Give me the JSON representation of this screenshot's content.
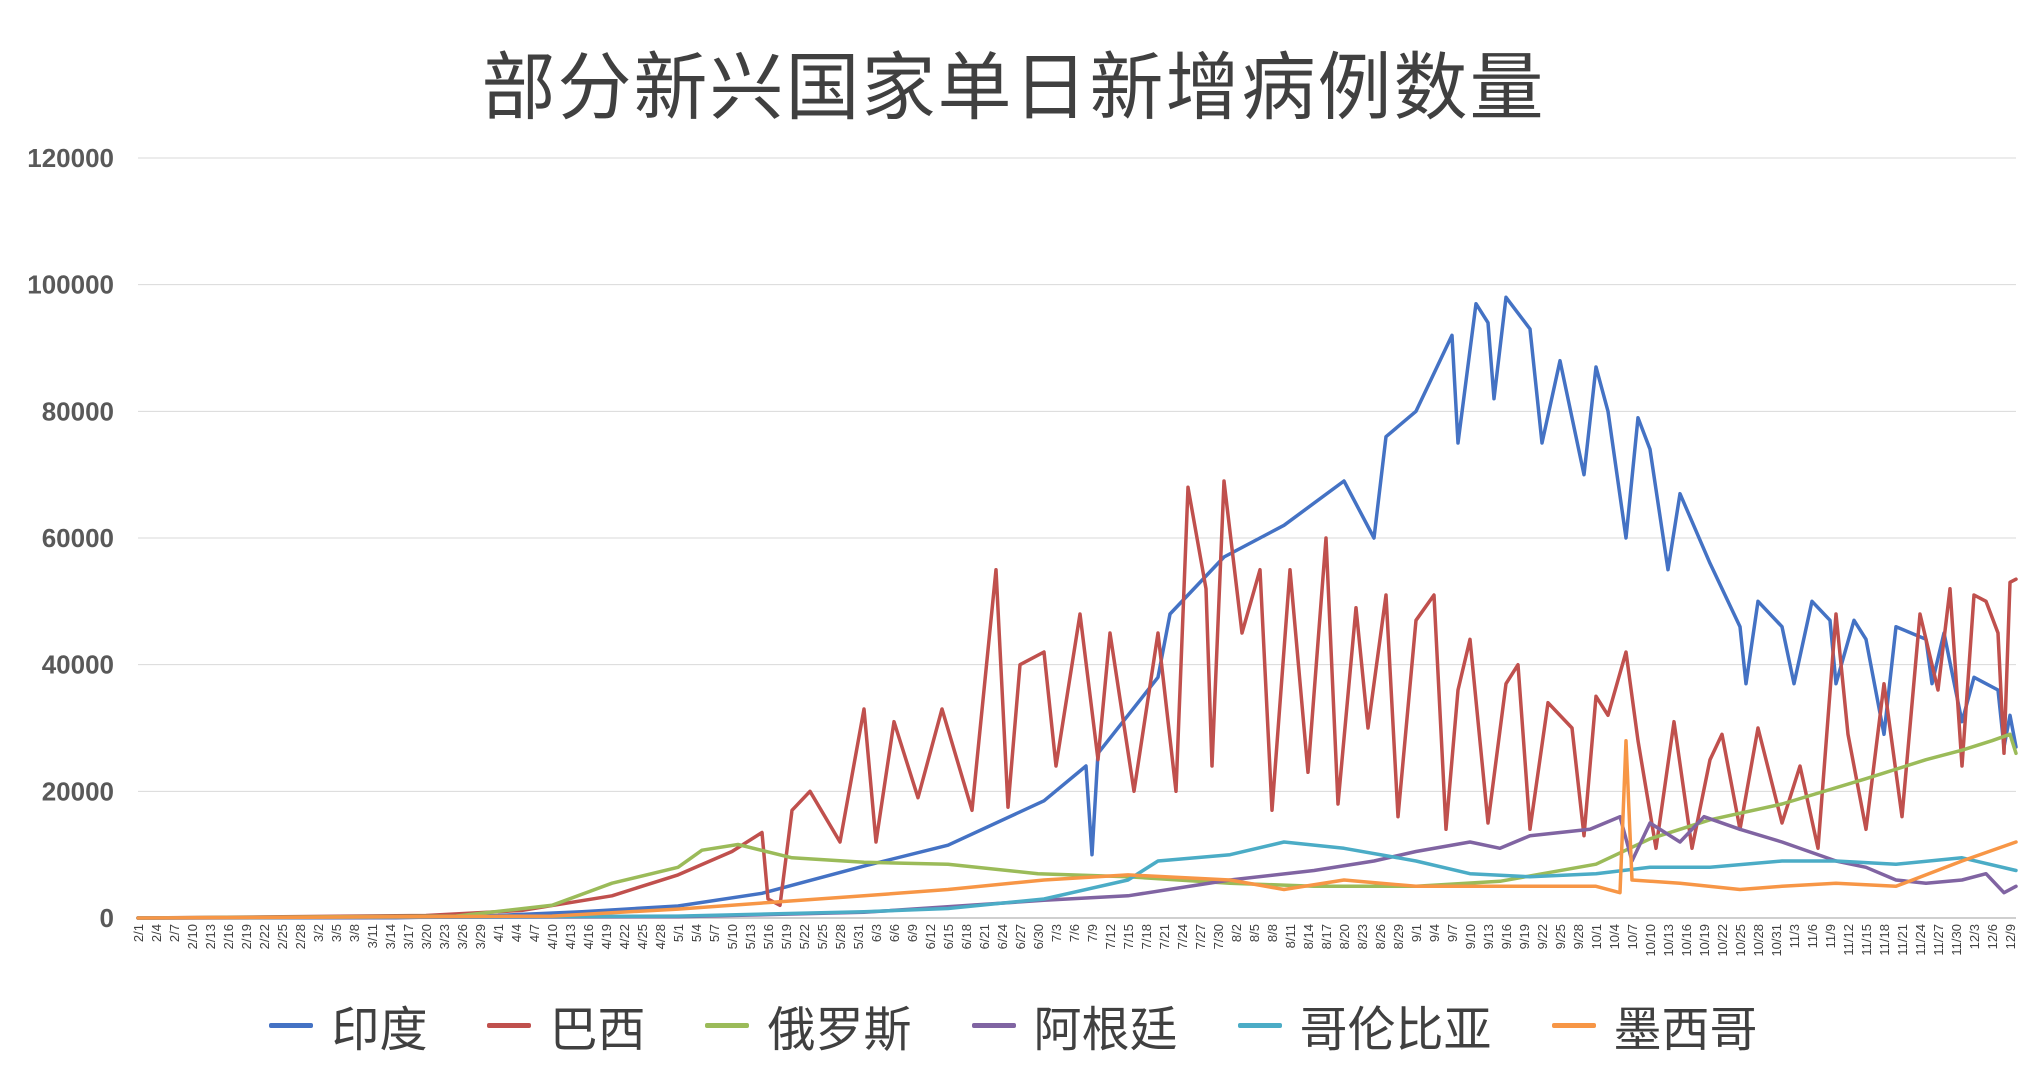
{
  "chart_data": {
    "type": "line",
    "title": "部分新兴国家单日新增病例数量",
    "xlabel": "",
    "ylabel": "",
    "ylim": [
      0,
      120000
    ],
    "yticks": [
      "0",
      "20000",
      "40000",
      "60000",
      "80000",
      "100000",
      "120000"
    ],
    "grid": true,
    "legend_position": "bottom",
    "x_start": "2/1",
    "x_end": "12/10",
    "x_tick_labels": [
      "2/1",
      "2/4",
      "2/7",
      "2/10",
      "2/13",
      "2/16",
      "2/19",
      "2/22",
      "2/25",
      "2/28",
      "3/2",
      "3/5",
      "3/8",
      "3/11",
      "3/14",
      "3/17",
      "3/20",
      "3/23",
      "3/26",
      "3/29",
      "4/1",
      "4/4",
      "4/7",
      "4/10",
      "4/13",
      "4/16",
      "4/19",
      "4/22",
      "4/25",
      "4/28",
      "5/1",
      "5/4",
      "5/7",
      "5/10",
      "5/13",
      "5/16",
      "5/19",
      "5/22",
      "5/25",
      "5/28",
      "5/31",
      "6/3",
      "6/6",
      "6/9",
      "6/12",
      "6/15",
      "6/18",
      "6/21",
      "6/24",
      "6/27",
      "6/30",
      "7/3",
      "7/6",
      "7/9",
      "7/12",
      "7/15",
      "7/18",
      "7/21",
      "7/24",
      "7/27",
      "7/30",
      "8/2",
      "8/5",
      "8/8",
      "8/11",
      "8/14",
      "8/17",
      "8/20",
      "8/23",
      "8/26",
      "8/29",
      "9/1",
      "9/4",
      "9/7",
      "9/10",
      "9/13",
      "9/16",
      "9/19",
      "9/22",
      "9/25",
      "9/28",
      "10/1",
      "10/4",
      "10/7",
      "10/10",
      "10/13",
      "10/16",
      "10/19",
      "10/22",
      "10/25",
      "10/28",
      "10/31",
      "11/3",
      "11/6",
      "11/9",
      "11/12",
      "11/15",
      "11/18",
      "11/21",
      "11/24",
      "11/27",
      "11/30",
      "12/3",
      "12/6",
      "12/9"
    ],
    "series": [
      {
        "name": "印度",
        "color": "#4472C4",
        "points": [
          [
            "2/1",
            0
          ],
          [
            "3/15",
            50
          ],
          [
            "4/1",
            400
          ],
          [
            "4/15",
            1000
          ],
          [
            "5/1",
            1900
          ],
          [
            "5/15",
            3900
          ],
          [
            "6/1",
            8200
          ],
          [
            "6/15",
            11500
          ],
          [
            "7/1",
            18500
          ],
          [
            "7/8",
            24000
          ],
          [
            "7/9",
            10000
          ],
          [
            "7/10",
            26000
          ],
          [
            "7/20",
            38000
          ],
          [
            "7/22",
            48000
          ],
          [
            "7/31",
            57000
          ],
          [
            "8/10",
            62000
          ],
          [
            "8/20",
            69000
          ],
          [
            "8/25",
            60000
          ],
          [
            "8/27",
            76000
          ],
          [
            "9/1",
            80000
          ],
          [
            "9/7",
            92000
          ],
          [
            "9/8",
            75000
          ],
          [
            "9/11",
            97000
          ],
          [
            "9/13",
            94000
          ],
          [
            "9/14",
            82000
          ],
          [
            "9/16",
            98000
          ],
          [
            "9/20",
            93000
          ],
          [
            "9/22",
            75000
          ],
          [
            "9/25",
            88000
          ],
          [
            "9/29",
            70000
          ],
          [
            "10/1",
            87000
          ],
          [
            "10/3",
            80000
          ],
          [
            "10/6",
            60000
          ],
          [
            "10/8",
            79000
          ],
          [
            "10/10",
            74000
          ],
          [
            "10/13",
            55000
          ],
          [
            "10/15",
            67000
          ],
          [
            "10/20",
            56000
          ],
          [
            "10/25",
            46000
          ],
          [
            "10/26",
            37000
          ],
          [
            "10/28",
            50000
          ],
          [
            "11/1",
            46000
          ],
          [
            "11/3",
            37000
          ],
          [
            "11/6",
            50000
          ],
          [
            "11/9",
            47000
          ],
          [
            "11/10",
            37000
          ],
          [
            "11/13",
            47000
          ],
          [
            "11/15",
            44000
          ],
          [
            "11/18",
            29000
          ],
          [
            "11/20",
            46000
          ],
          [
            "11/25",
            44000
          ],
          [
            "11/26",
            37000
          ],
          [
            "11/28",
            45000
          ],
          [
            "12/1",
            31000
          ],
          [
            "12/3",
            38000
          ],
          [
            "12/7",
            36000
          ],
          [
            "12/8",
            27000
          ],
          [
            "12/9",
            32000
          ],
          [
            "12/10",
            27000
          ]
        ]
      },
      {
        "name": "巴西",
        "color": "#C0504D",
        "points": [
          [
            "2/1",
            0
          ],
          [
            "3/20",
            400
          ],
          [
            "4/5",
            1200
          ],
          [
            "4/20",
            3500
          ],
          [
            "5/1",
            6800
          ],
          [
            "5/10",
            10500
          ],
          [
            "5/15",
            13500
          ],
          [
            "5/16",
            3000
          ],
          [
            "5/18",
            2000
          ],
          [
            "5/20",
            17000
          ],
          [
            "5/23",
            20000
          ],
          [
            "5/28",
            12000
          ],
          [
            "6/1",
            33000
          ],
          [
            "6/3",
            12000
          ],
          [
            "6/6",
            31000
          ],
          [
            "6/10",
            19000
          ],
          [
            "6/14",
            33000
          ],
          [
            "6/19",
            17000
          ],
          [
            "6/23",
            55000
          ],
          [
            "6/25",
            17500
          ],
          [
            "6/27",
            40000
          ],
          [
            "7/1",
            42000
          ],
          [
            "7/3",
            24000
          ],
          [
            "7/7",
            48000
          ],
          [
            "7/10",
            25000
          ],
          [
            "7/12",
            45000
          ],
          [
            "7/16",
            20000
          ],
          [
            "7/20",
            45000
          ],
          [
            "7/23",
            20000
          ],
          [
            "7/25",
            68000
          ],
          [
            "7/28",
            52000
          ],
          [
            "7/29",
            24000
          ],
          [
            "7/31",
            69000
          ],
          [
            "8/3",
            45000
          ],
          [
            "8/6",
            55000
          ],
          [
            "8/8",
            17000
          ],
          [
            "8/11",
            55000
          ],
          [
            "8/14",
            23000
          ],
          [
            "8/17",
            60000
          ],
          [
            "8/19",
            18000
          ],
          [
            "8/22",
            49000
          ],
          [
            "8/24",
            30000
          ],
          [
            "8/27",
            51000
          ],
          [
            "8/29",
            16000
          ],
          [
            "9/1",
            47000
          ],
          [
            "9/4",
            51000
          ],
          [
            "9/6",
            14000
          ],
          [
            "9/8",
            36000
          ],
          [
            "9/10",
            44000
          ],
          [
            "9/13",
            15000
          ],
          [
            "9/16",
            37000
          ],
          [
            "9/18",
            40000
          ],
          [
            "9/20",
            14000
          ],
          [
            "9/23",
            34000
          ],
          [
            "9/27",
            30000
          ],
          [
            "9/29",
            13000
          ],
          [
            "10/1",
            35000
          ],
          [
            "10/3",
            32000
          ],
          [
            "10/6",
            42000
          ],
          [
            "10/8",
            28000
          ],
          [
            "10/11",
            11000
          ],
          [
            "10/14",
            31000
          ],
          [
            "10/17",
            11000
          ],
          [
            "10/20",
            25000
          ],
          [
            "10/22",
            29000
          ],
          [
            "10/25",
            14000
          ],
          [
            "10/28",
            30000
          ],
          [
            "11/1",
            15000
          ],
          [
            "11/4",
            24000
          ],
          [
            "11/7",
            11000
          ],
          [
            "11/10",
            48000
          ],
          [
            "11/12",
            29000
          ],
          [
            "11/15",
            14000
          ],
          [
            "11/18",
            37000
          ],
          [
            "11/21",
            16000
          ],
          [
            "11/24",
            48000
          ],
          [
            "11/27",
            36000
          ],
          [
            "11/29",
            52000
          ],
          [
            "12/1",
            24000
          ],
          [
            "12/3",
            51000
          ],
          [
            "12/5",
            50000
          ],
          [
            "12/7",
            45000
          ],
          [
            "12/8",
            26000
          ],
          [
            "12/9",
            53000
          ],
          [
            "12/10",
            53500
          ]
        ]
      },
      {
        "name": "俄罗斯",
        "color": "#9BBB59",
        "points": [
          [
            "2/1",
            0
          ],
          [
            "3/25",
            300
          ],
          [
            "4/10",
            2000
          ],
          [
            "4/20",
            5500
          ],
          [
            "5/1",
            8000
          ],
          [
            "5/5",
            10700
          ],
          [
            "5/11",
            11600
          ],
          [
            "5/20",
            9500
          ],
          [
            "6/1",
            8800
          ],
          [
            "6/15",
            8500
          ],
          [
            "6/30",
            7000
          ],
          [
            "7/15",
            6500
          ],
          [
            "8/1",
            5500
          ],
          [
            "8/15",
            5000
          ],
          [
            "9/1",
            5000
          ],
          [
            "9/15",
            5800
          ],
          [
            "10/1",
            8500
          ],
          [
            "10/10",
            12500
          ],
          [
            "10/20",
            15500
          ],
          [
            "11/1",
            18000
          ],
          [
            "11/15",
            22000
          ],
          [
            "11/25",
            25000
          ],
          [
            "12/1",
            26500
          ],
          [
            "12/6",
            28000
          ],
          [
            "12/9",
            29000
          ],
          [
            "12/10",
            26000
          ]
        ]
      },
      {
        "name": "阿根廷",
        "color": "#8064A2",
        "points": [
          [
            "2/1",
            0
          ],
          [
            "5/1",
            200
          ],
          [
            "6/1",
            900
          ],
          [
            "7/1",
            2800
          ],
          [
            "7/15",
            3500
          ],
          [
            "8/1",
            6000
          ],
          [
            "8/15",
            7500
          ],
          [
            "8/25",
            9000
          ],
          [
            "9/1",
            10500
          ],
          [
            "9/10",
            12000
          ],
          [
            "9/15",
            11000
          ],
          [
            "9/20",
            13000
          ],
          [
            "9/30",
            14000
          ],
          [
            "10/5",
            16000
          ],
          [
            "10/7",
            9000
          ],
          [
            "10/10",
            15000
          ],
          [
            "10/15",
            12000
          ],
          [
            "10/19",
            16000
          ],
          [
            "10/25",
            14000
          ],
          [
            "11/1",
            12000
          ],
          [
            "11/10",
            9000
          ],
          [
            "11/15",
            8000
          ],
          [
            "11/20",
            6000
          ],
          [
            "11/25",
            5500
          ],
          [
            "12/1",
            6000
          ],
          [
            "12/5",
            7000
          ],
          [
            "12/8",
            4000
          ],
          [
            "12/10",
            5000
          ]
        ]
      },
      {
        "name": "哥伦比亚",
        "color": "#4BACC6",
        "points": [
          [
            "2/1",
            0
          ],
          [
            "5/1",
            300
          ],
          [
            "6/1",
            1000
          ],
          [
            "6/15",
            1500
          ],
          [
            "7/1",
            3000
          ],
          [
            "7/15",
            6000
          ],
          [
            "7/20",
            9000
          ],
          [
            "8/1",
            10000
          ],
          [
            "8/10",
            12000
          ],
          [
            "8/20",
            11000
          ],
          [
            "9/1",
            9000
          ],
          [
            "9/10",
            7000
          ],
          [
            "9/20",
            6500
          ],
          [
            "10/1",
            7000
          ],
          [
            "10/10",
            8000
          ],
          [
            "10/20",
            8000
          ],
          [
            "11/1",
            9000
          ],
          [
            "11/10",
            9000
          ],
          [
            "11/20",
            8500
          ],
          [
            "12/1",
            9500
          ],
          [
            "12/10",
            7500
          ]
        ]
      },
      {
        "name": "墨西哥",
        "color": "#F79646",
        "points": [
          [
            "2/1",
            0
          ],
          [
            "4/10",
            300
          ],
          [
            "5/1",
            1400
          ],
          [
            "5/20",
            2700
          ],
          [
            "6/1",
            3500
          ],
          [
            "6/15",
            4500
          ],
          [
            "7/1",
            6000
          ],
          [
            "7/15",
            6800
          ],
          [
            "8/1",
            6000
          ],
          [
            "8/10",
            4500
          ],
          [
            "8/20",
            6000
          ],
          [
            "9/1",
            5000
          ],
          [
            "9/15",
            5000
          ],
          [
            "10/1",
            5000
          ],
          [
            "10/5",
            4000
          ],
          [
            "10/6",
            28000
          ],
          [
            "10/7",
            6000
          ],
          [
            "10/15",
            5500
          ],
          [
            "10/25",
            4500
          ],
          [
            "11/1",
            5000
          ],
          [
            "11/10",
            5500
          ],
          [
            "11/20",
            5000
          ],
          [
            "12/1",
            9000
          ],
          [
            "12/10",
            12000
          ]
        ]
      }
    ]
  }
}
